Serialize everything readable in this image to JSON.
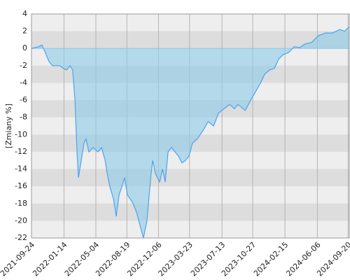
{
  "chart_data": {
    "type": "area",
    "ylabel": "[Zmiany %]",
    "x": [
      "2021-09-24",
      "2021-10-18",
      "2021-10-30",
      "2021-11-11",
      "2021-11-23",
      "2021-12-05",
      "2021-12-30",
      "2022-01-11",
      "2022-01-23",
      "2022-02-04",
      "2022-02-13",
      "2022-02-21",
      "2022-02-28",
      "2022-03-05",
      "2022-03-12",
      "2022-03-24",
      "2022-03-31",
      "2022-04-10",
      "2022-04-25",
      "2022-05-11",
      "2022-05-24",
      "2022-06-05",
      "2022-06-12",
      "2022-06-21",
      "2022-07-04",
      "2022-07-13",
      "2022-07-23",
      "2022-08-02",
      "2022-08-11",
      "2022-08-21",
      "2022-08-31",
      "2022-09-09",
      "2022-09-21",
      "2022-10-03",
      "2022-10-15",
      "2022-10-27",
      "2022-11-09",
      "2022-11-16",
      "2022-11-25",
      "2022-12-10",
      "2022-12-20",
      "2022-12-29",
      "2023-01-08",
      "2023-01-20",
      "2023-02-01",
      "2023-02-13",
      "2023-02-25",
      "2023-03-09",
      "2023-03-21",
      "2023-04-02",
      "2023-04-19",
      "2023-05-09",
      "2023-05-26",
      "2023-06-14",
      "2023-07-01",
      "2023-07-20",
      "2023-08-08",
      "2023-08-25",
      "2023-09-06",
      "2023-10-01",
      "2023-10-20",
      "2023-11-06",
      "2023-11-23",
      "2023-12-07",
      "2023-12-24",
      "2024-01-10",
      "2024-01-25",
      "2024-02-10",
      "2024-02-27",
      "2024-03-18",
      "2024-04-06",
      "2024-04-23",
      "2024-05-17",
      "2024-06-10",
      "2024-07-04",
      "2024-07-28",
      "2024-08-22",
      "2024-09-08",
      "2024-09-22"
    ],
    "series": [
      {
        "color": "#4da3ee",
        "fill": "#8ccbea",
        "values": [
          0,
          0.2,
          0.4,
          -0.5,
          -1.5,
          -2,
          -2,
          -2.3,
          -2.5,
          -2,
          -2.5,
          -6,
          -12,
          -15,
          -13.5,
          -11,
          -10.5,
          -12,
          -11.5,
          -12,
          -11.5,
          -13,
          -14.5,
          -16,
          -17.5,
          -19.5,
          -17,
          -16,
          -15,
          -17,
          -17.5,
          -18,
          -19,
          -20.5,
          -22,
          -20,
          -15,
          -13,
          -14.5,
          -15.5,
          -14,
          -15.5,
          -12,
          -11.5,
          -12,
          -12.5,
          -13.3,
          -13,
          -12.5,
          -11,
          -10.5,
          -9.5,
          -8.5,
          -9,
          -7.5,
          -7,
          -6.5,
          -7,
          -6.5,
          -7.2,
          -6,
          -5,
          -4,
          -3,
          -2.5,
          -2.3,
          -1.2,
          -0.7,
          -0.5,
          0.2,
          0.1,
          0.5,
          0.7,
          1.5,
          1.8,
          1.8,
          2.2,
          2,
          2.5
        ]
      }
    ],
    "xlim": [
      "2021-09-24",
      "2024-09-24"
    ],
    "xticks": [
      "2021-09-24",
      "2022-01-14",
      "2022-05-04",
      "2022-08-19",
      "2022-12-06",
      "2023-03-23",
      "2023-07-13",
      "2023-10-27",
      "2024-02-15",
      "2024-06-06",
      "2024-09-20"
    ],
    "ylim": [
      -22,
      4
    ],
    "yticks": [
      4,
      2,
      0,
      -2,
      -4,
      -6,
      -8,
      -10,
      -12,
      -14,
      -16,
      -18,
      -20,
      -22
    ],
    "grid": true
  }
}
